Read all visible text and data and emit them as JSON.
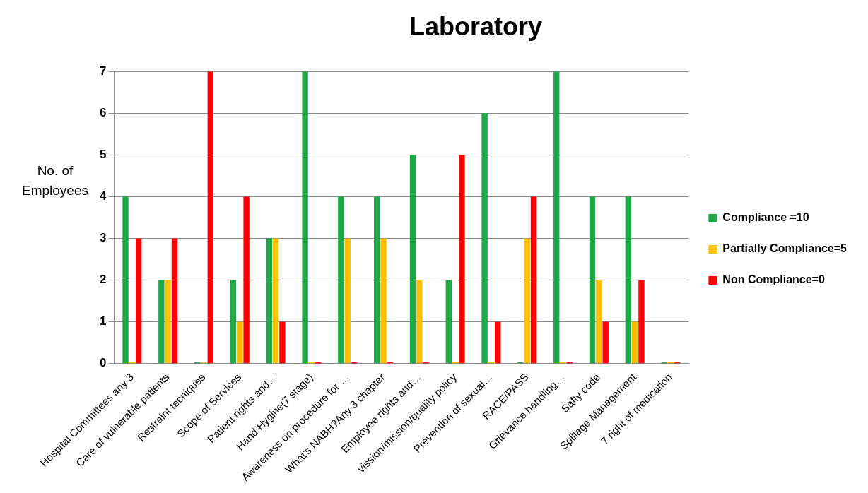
{
  "chart_data": {
    "type": "bar",
    "title": "Laboratory",
    "ylabel": "No. of Employees",
    "categories": [
      "Hospital Committees any 3",
      "Care of vulnerable patients",
      "Restraint tecniques",
      "Scope of Services",
      "Patient rights and…",
      "Hand Hygine(7 stage)",
      "Awareness on procedure for …",
      "What's NABH?Any 3 chapter",
      "Employee rights and…",
      "vission/mission/quality policy",
      "Prevention of sexual…",
      "RACE/PASS",
      "Grievance handling…",
      "Safty code",
      "Spillage Management",
      "7 right of medication"
    ],
    "series": [
      {
        "name": "Compliance =10",
        "color": "#1fa84a",
        "values": [
          4,
          2,
          0,
          2,
          3,
          7,
          4,
          4,
          5,
          2,
          6,
          0,
          7,
          4,
          4,
          0
        ]
      },
      {
        "name": "Partially Compliance=5",
        "color": "#ffc000",
        "values": [
          0,
          2,
          0,
          1,
          3,
          0,
          3,
          3,
          2,
          0,
          0,
          3,
          0,
          2,
          1,
          0
        ]
      },
      {
        "name": "Non Compliance=0",
        "color": "#ff0000",
        "values": [
          3,
          3,
          7,
          4,
          1,
          0,
          0,
          0,
          0,
          5,
          1,
          4,
          0,
          1,
          2,
          0
        ]
      }
    ],
    "ylim": [
      0,
      7
    ],
    "yticks": [
      0,
      1,
      2,
      3,
      4,
      5,
      6,
      7
    ],
    "grid": "y",
    "legend": "right"
  }
}
